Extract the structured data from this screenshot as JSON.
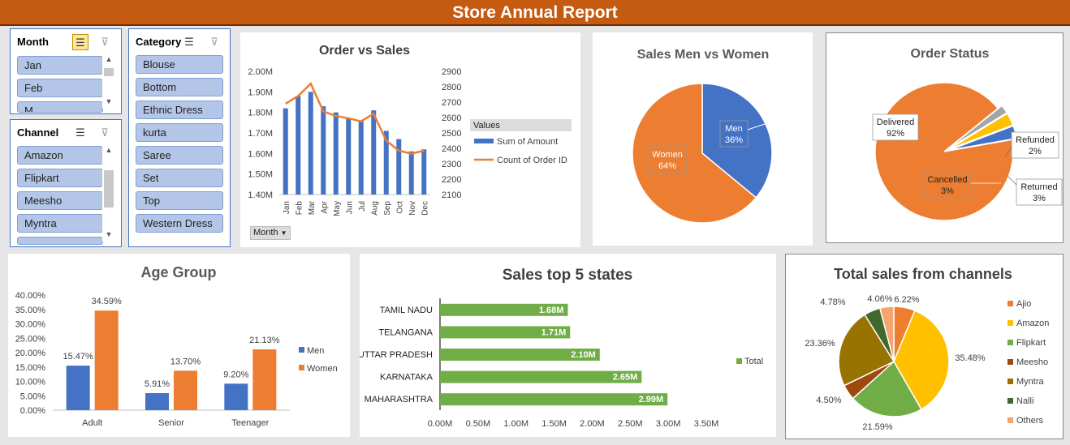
{
  "header": {
    "title": "Store Annual Report"
  },
  "slicers": {
    "month": {
      "title": "Month",
      "items": [
        "Jan",
        "Feb",
        "M"
      ]
    },
    "channel": {
      "title": "Channel",
      "items": [
        "Amazon",
        "Flipkart",
        "Meesho",
        "Myntra"
      ]
    },
    "category": {
      "title": "Category",
      "items": [
        "Blouse",
        "Bottom",
        "Ethnic Dress",
        "kurta",
        "Saree",
        "Set",
        "Top",
        "Western Dress"
      ]
    }
  },
  "colors": {
    "blue": "#4472c4",
    "orange": "#ed7d31",
    "green": "#70ad47",
    "header": "#c55a11"
  },
  "chart_data": [
    {
      "id": "order_vs_sales",
      "type": "bar",
      "title": "Order vs Sales",
      "categories": [
        "Jan",
        "Feb",
        "Mar",
        "Apr",
        "May",
        "Jun",
        "Jul",
        "Aug",
        "Sep",
        "Oct",
        "Nov",
        "Dec"
      ],
      "series": [
        {
          "name": "Sum of Amount",
          "axis": "left",
          "values": [
            1.82,
            1.88,
            1.9,
            1.83,
            1.8,
            1.77,
            1.76,
            1.81,
            1.71,
            1.67,
            1.61,
            1.62
          ]
        },
        {
          "name": "Count of Order ID",
          "axis": "right",
          "type": "line",
          "values": [
            2690,
            2740,
            2820,
            2640,
            2610,
            2595,
            2575,
            2625,
            2450,
            2385,
            2365,
            2385
          ]
        }
      ],
      "ylim_left": [
        1.4,
        2.0
      ],
      "yticks_left": [
        "1.40M",
        "1.50M",
        "1.60M",
        "1.70M",
        "1.80M",
        "1.90M",
        "2.00M"
      ],
      "ylim_right": [
        2100,
        2900
      ],
      "yticks_right": [
        "2100",
        "2200",
        "2300",
        "2400",
        "2500",
        "2600",
        "2700",
        "2800",
        "2900"
      ],
      "legend_title": "Values",
      "field_button": "Month"
    },
    {
      "id": "sales_men_women",
      "type": "pie",
      "title": "Sales Men vs Women",
      "labels": [
        "Men",
        "Women"
      ],
      "values": [
        36,
        64
      ],
      "value_labels": [
        "36%",
        "64%"
      ]
    },
    {
      "id": "order_status",
      "type": "pie",
      "title": "Order  Status",
      "labels": [
        "Delivered",
        "Refunded",
        "Returned",
        "Cancelled"
      ],
      "values": [
        92,
        2,
        3,
        3
      ],
      "value_labels": [
        "92%",
        "2%",
        "3%",
        "3%"
      ]
    },
    {
      "id": "age_group",
      "type": "bar",
      "title": "Age Group",
      "categories": [
        "Adult",
        "Senior",
        "Teenager"
      ],
      "series": [
        {
          "name": "Men",
          "values": [
            15.47,
            5.91,
            9.2
          ],
          "labels": [
            "15.47%",
            "5.91%",
            "9.20%"
          ]
        },
        {
          "name": "Women",
          "values": [
            34.59,
            13.7,
            21.13
          ],
          "labels": [
            "34.59%",
            "13.70%",
            "21.13%"
          ]
        }
      ],
      "ylim": [
        0,
        40
      ],
      "yticks": [
        "0.00%",
        "5.00%",
        "10.00%",
        "15.00%",
        "20.00%",
        "25.00%",
        "30.00%",
        "35.00%",
        "40.00%"
      ]
    },
    {
      "id": "top5_states",
      "type": "bar",
      "orientation": "horizontal",
      "title": "Sales top 5 states",
      "categories": [
        "TAMIL NADU",
        "TELANGANA",
        "UTTAR PRADESH",
        "KARNATAKA",
        "MAHARASHTRA"
      ],
      "series": [
        {
          "name": "Total",
          "values": [
            1.68,
            1.71,
            2.1,
            2.65,
            2.99
          ],
          "labels": [
            "1.68M",
            "1.71M",
            "2.10M",
            "2.65M",
            "2.99M"
          ]
        }
      ],
      "xlim": [
        0,
        3.5
      ],
      "xticks": [
        "0.00M",
        "0.50M",
        "1.00M",
        "1.50M",
        "2.00M",
        "2.50M",
        "3.00M",
        "3.50M"
      ]
    },
    {
      "id": "channel_sales",
      "type": "pie",
      "title": "Total sales from channels",
      "labels": [
        "Ajio",
        "Amazon",
        "Flipkart",
        "Meesho",
        "Myntra",
        "Nalli",
        "Others"
      ],
      "values": [
        6.22,
        35.48,
        21.59,
        4.5,
        23.36,
        4.78,
        4.06
      ],
      "value_labels": [
        "6.22%",
        "35.48%",
        "21.59%",
        "4.50%",
        "23.36%",
        "4.78%",
        "4.06%"
      ],
      "colors": [
        "#ed7d31",
        "#ffc000",
        "#70ad47",
        "#9e480e",
        "#997300",
        "#43682b",
        "#f4a46c"
      ]
    }
  ]
}
